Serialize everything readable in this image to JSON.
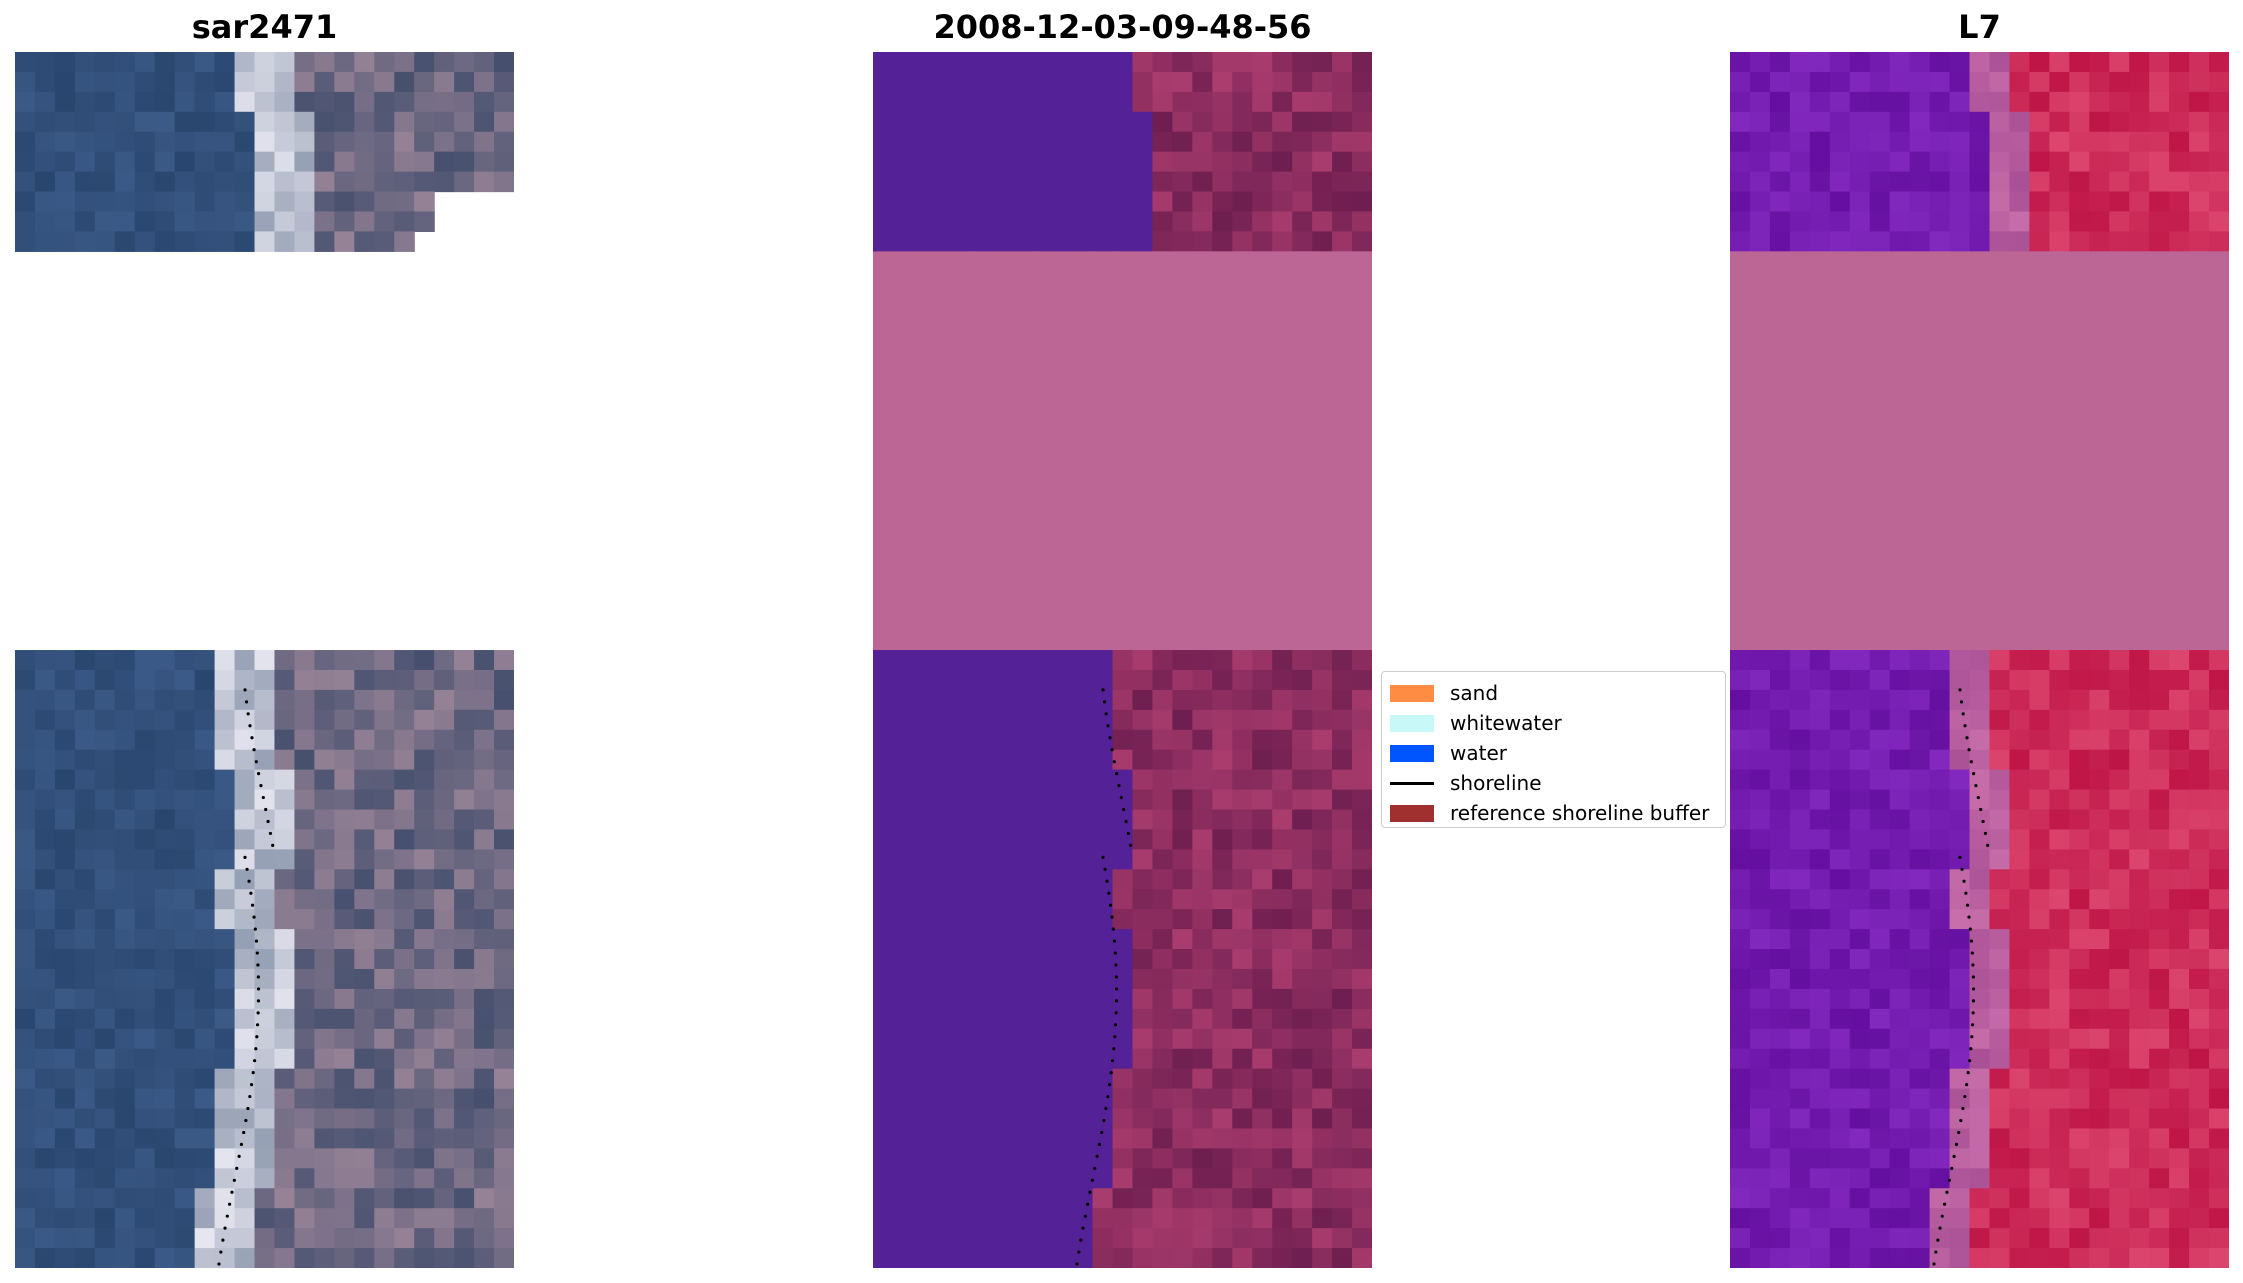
{
  "panels": [
    {
      "title": "sar2471",
      "kind": "rgb"
    },
    {
      "title": "2008-12-03-09-48-56",
      "kind": "classified"
    },
    {
      "title": "L7",
      "kind": "mndwi"
    }
  ],
  "legend": {
    "items": [
      {
        "label": "sand",
        "type": "patch",
        "color": "#ff8c42"
      },
      {
        "label": "whitewater",
        "type": "patch",
        "color": "#c8f8f8"
      },
      {
        "label": "water",
        "type": "patch",
        "color": "#0055ff"
      },
      {
        "label": "shoreline",
        "type": "line",
        "color": "#000000"
      },
      {
        "label": "reference shoreline buffer",
        "type": "patch",
        "color": "#a03030"
      }
    ]
  },
  "colors": {
    "nodata_pink": "#bc6696",
    "classified_water": "#542196",
    "classified_land": "#7a2a60",
    "rgb_water": "#2c4a70",
    "mndwi_land": "#c8164a",
    "mndwi_water": "#6a1aa0"
  }
}
